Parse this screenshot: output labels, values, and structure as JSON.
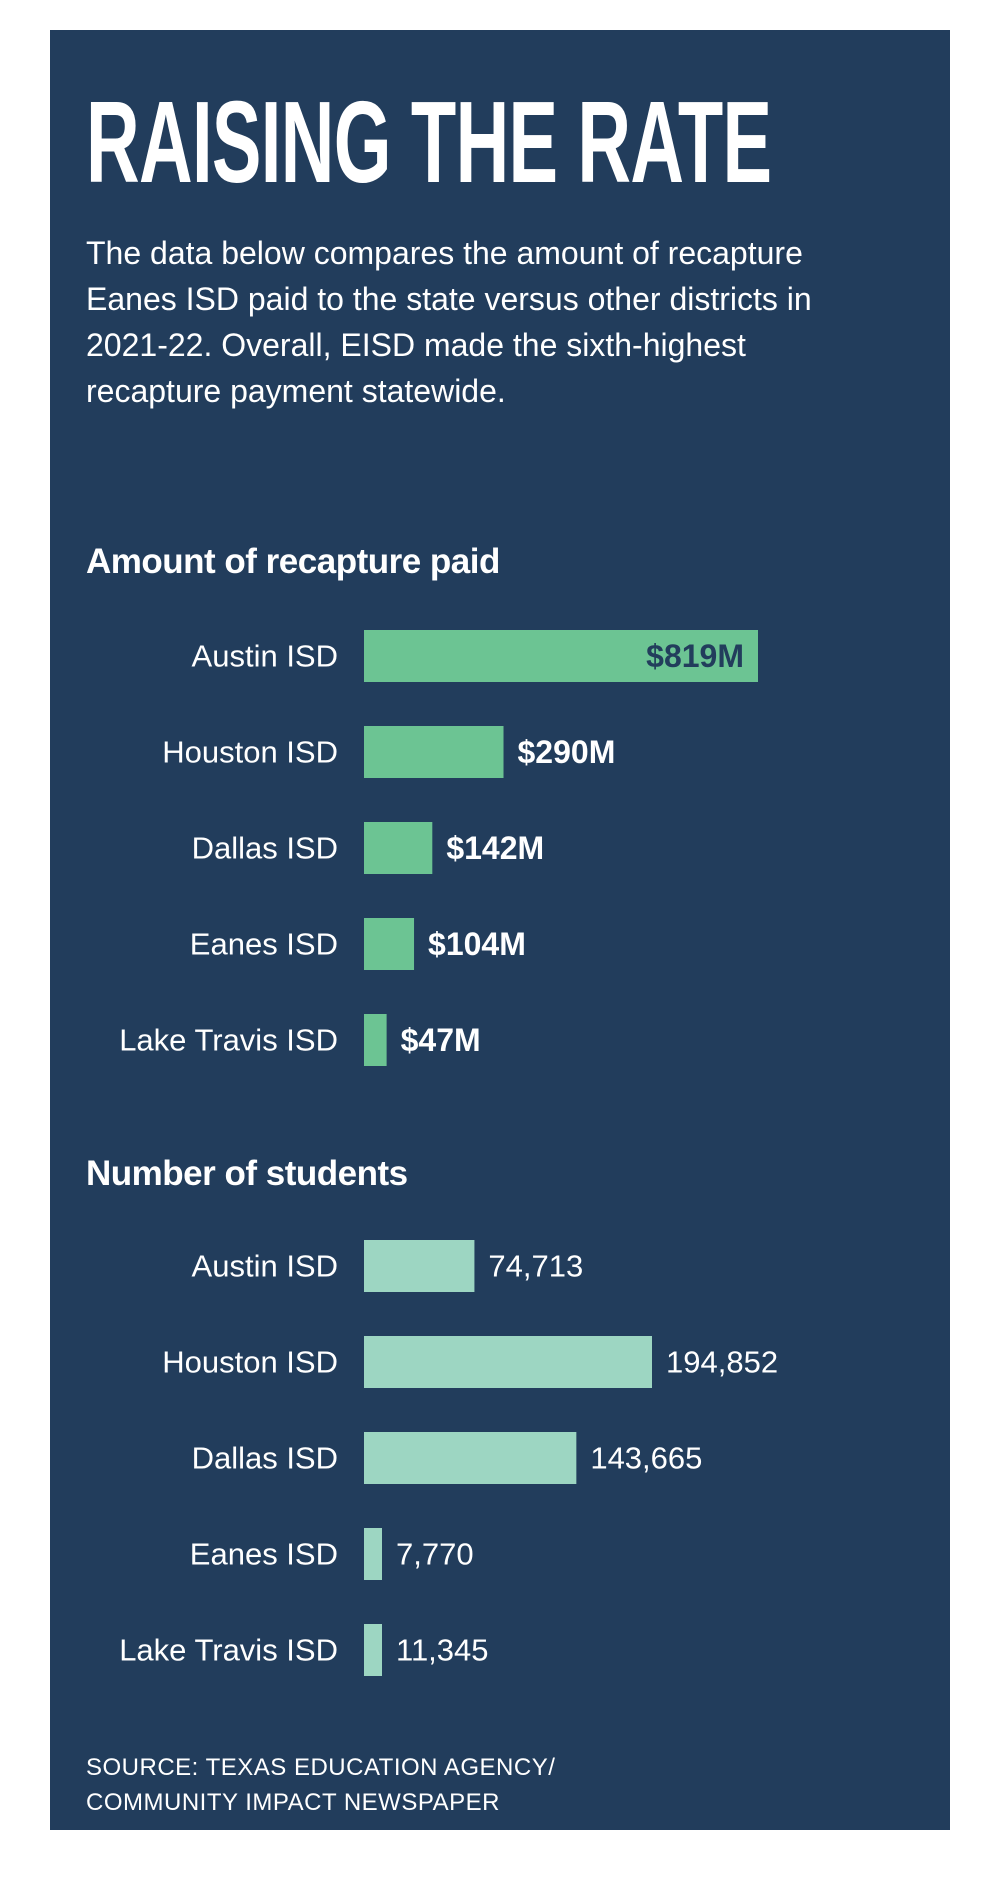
{
  "title": "RAISING THE RATE",
  "intro": "The data below compares the amount of recapture Eanes ISD paid to the state versus other districts in 2021-22. Overall, EISD made the sixth-highest recapture payment statewide.",
  "source": {
    "line1": "SOURCE: TEXAS EDUCATION AGENCY/",
    "line2": "COMMUNITY IMPACT NEWSPAPER"
  },
  "colors": {
    "background": "#223d5c",
    "recapture_bar": "#6cc493",
    "students_bar": "#9dd6c2",
    "text": "#ffffff"
  },
  "chart_data": [
    {
      "type": "bar",
      "orientation": "horizontal",
      "title": "Amount of recapture paid",
      "categories": [
        "Austin ISD",
        "Houston ISD",
        "Dallas ISD",
        "Eanes ISD",
        "Lake Travis ISD"
      ],
      "values": [
        819,
        290,
        142,
        104,
        47
      ],
      "value_labels": [
        "$819M",
        "$290M",
        "$142M",
        "$104M",
        "$47M"
      ],
      "unit": "$M",
      "grid": false,
      "legend": false
    },
    {
      "type": "bar",
      "orientation": "horizontal",
      "title": "Number of students",
      "categories": [
        "Austin ISD",
        "Houston ISD",
        "Dallas ISD",
        "Eanes ISD",
        "Lake Travis ISD"
      ],
      "values": [
        74713,
        194852,
        143665,
        7770,
        11345
      ],
      "value_labels": [
        "74,713",
        "194,852",
        "143,665",
        "7,770",
        "11,345"
      ],
      "grid": false,
      "legend": false
    }
  ]
}
